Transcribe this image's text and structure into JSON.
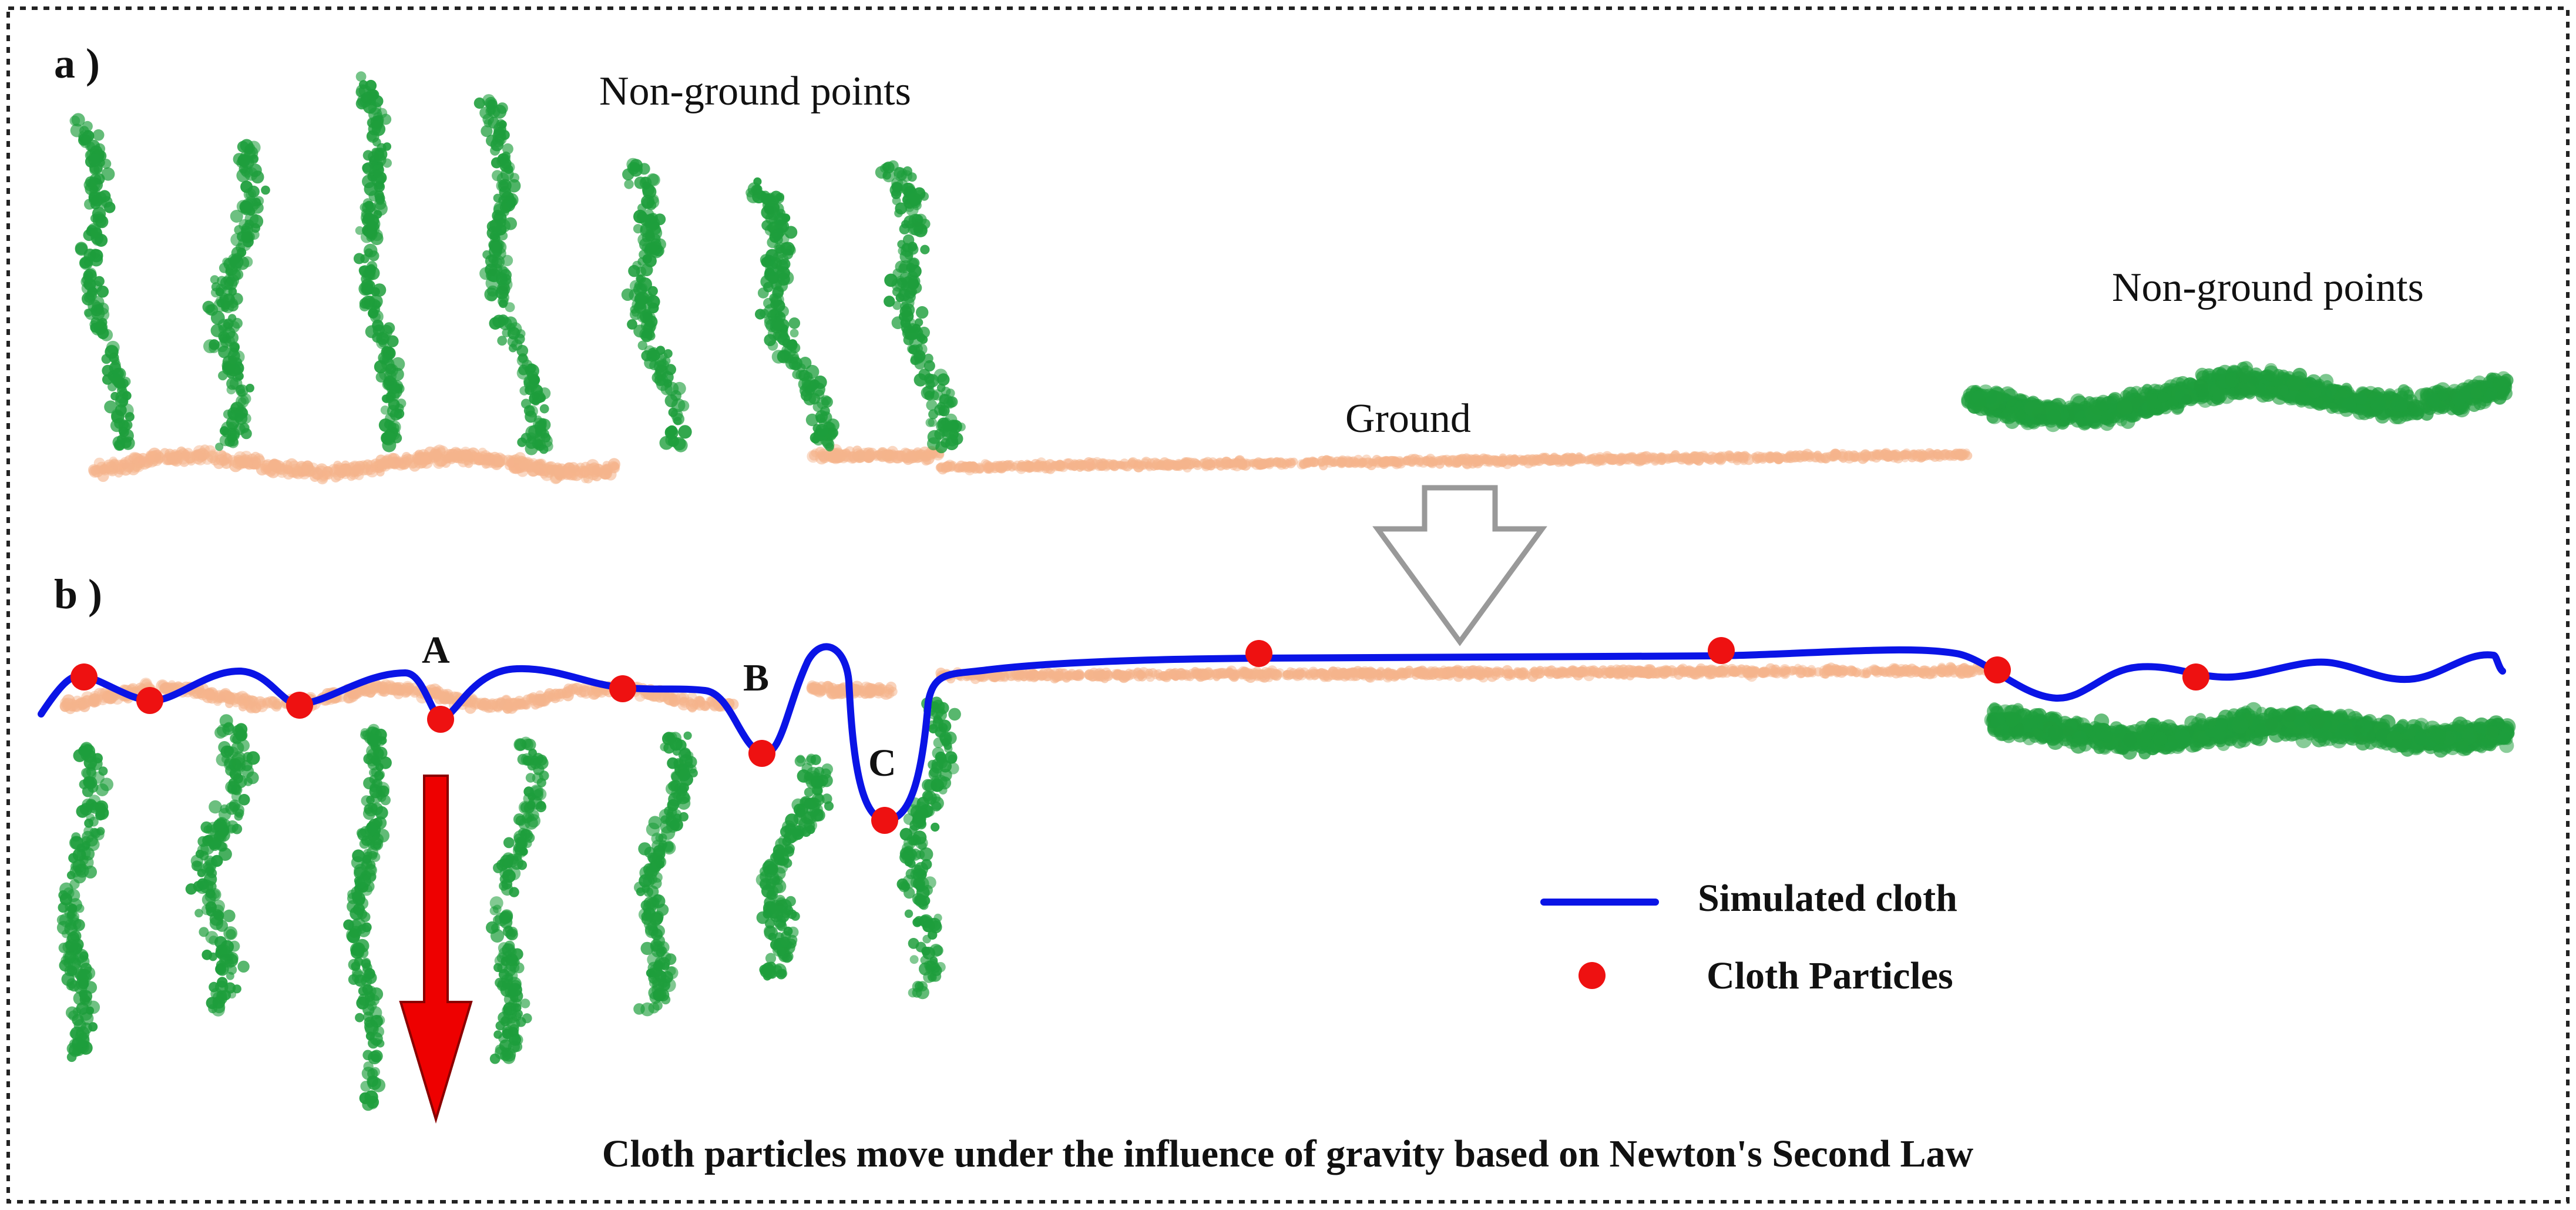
{
  "panel_a": {
    "letter": "a )",
    "label_non_ground_left": "Non-ground points",
    "label_non_ground_right": "Non-ground points",
    "label_ground": "Ground"
  },
  "panel_b": {
    "letter": "b )",
    "point_labels": [
      "A",
      "B",
      "C"
    ]
  },
  "legend": {
    "cloth_label": "Simulated cloth",
    "particles_label": "Cloth Particles"
  },
  "caption": "Cloth particles move under the influence of gravity based on Newton's Second Law",
  "colors": {
    "vegetation": "#1e9e3c",
    "ground": "#f5b48c",
    "cloth": "#0a14e6",
    "particle": "#ee1111",
    "gravity_arrow": "#ee0000",
    "transition_arrow": "#999999",
    "frame": "#222222"
  }
}
